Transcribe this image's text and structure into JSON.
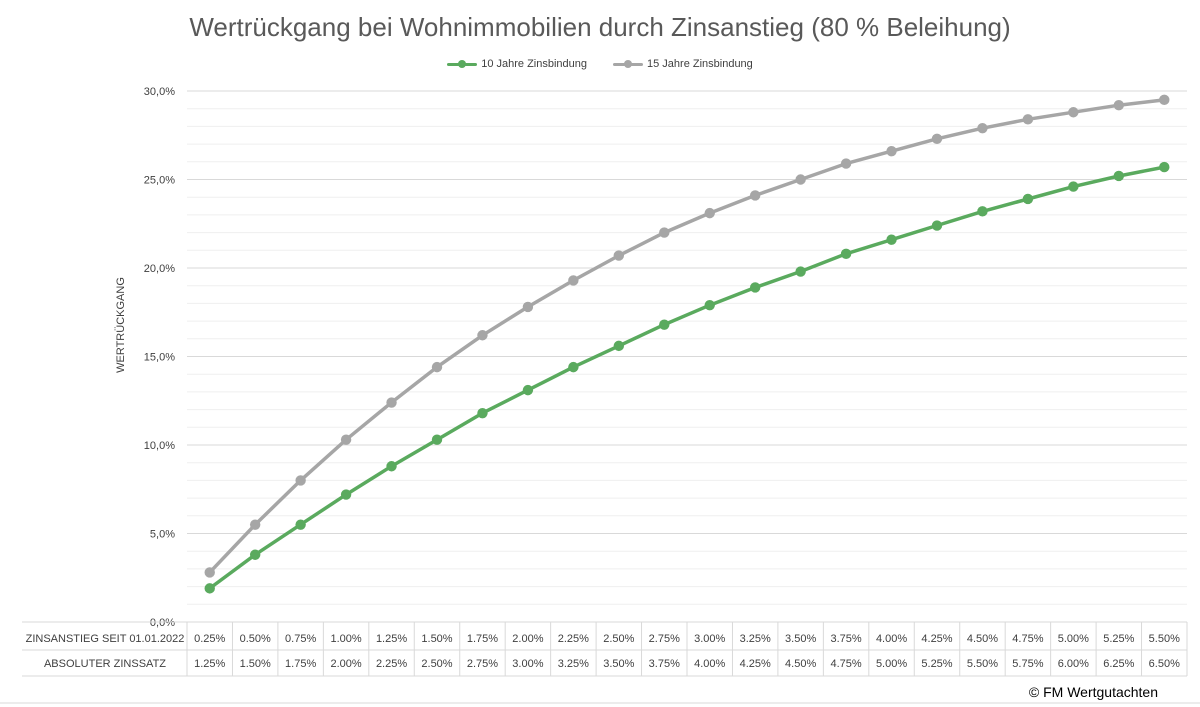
{
  "chart_data": {
    "type": "line",
    "title": "Wertrückgang bei Wohnimmobilien durch Zinsanstieg (80 % Beleihung)",
    "ylabel": "WERTRÜCKGANG",
    "ylim": [
      0,
      30
    ],
    "y_ticks": [
      "0,0%",
      "5,0%",
      "10,0%",
      "15,0%",
      "20,0%",
      "25,0%",
      "30,0%"
    ],
    "grid": true,
    "legend_position": "top",
    "table_rows": [
      {
        "label": "ZINSANSTIEG SEIT 01.01.2022",
        "values": [
          "0.25%",
          "0.50%",
          "0.75%",
          "1.00%",
          "1.25%",
          "1.50%",
          "1.75%",
          "2.00%",
          "2.25%",
          "2.50%",
          "2.75%",
          "3.00%",
          "3.25%",
          "3.50%",
          "3.75%",
          "4.00%",
          "4.25%",
          "4.50%",
          "4.75%",
          "5.00%",
          "5.25%",
          "5.50%"
        ]
      },
      {
        "label": "ABSOLUTER ZINSSATZ",
        "values": [
          "1.25%",
          "1.50%",
          "1.75%",
          "2.00%",
          "2.25%",
          "2.50%",
          "2.75%",
          "3.00%",
          "3.25%",
          "3.50%",
          "3.75%",
          "4.00%",
          "4.25%",
          "4.50%",
          "4.75%",
          "5.00%",
          "5.25%",
          "5.50%",
          "5.75%",
          "6.00%",
          "6.25%",
          "6.50%"
        ]
      }
    ],
    "series": [
      {
        "name": "10 Jahre Zinsbindung",
        "color": "#5aaa5e",
        "values": [
          1.9,
          3.8,
          5.5,
          7.2,
          8.8,
          10.3,
          11.8,
          13.1,
          14.4,
          15.6,
          16.8,
          17.9,
          18.9,
          19.8,
          20.8,
          21.6,
          22.4,
          23.2,
          23.9,
          24.6,
          25.2,
          25.7
        ]
      },
      {
        "name": "15 Jahre Zinsbindung",
        "color": "#a6a6a6",
        "values": [
          2.8,
          5.5,
          8.0,
          10.3,
          12.4,
          14.4,
          16.2,
          17.8,
          19.3,
          20.7,
          22.0,
          23.1,
          24.1,
          25.0,
          25.9,
          26.6,
          27.3,
          27.9,
          28.4,
          28.8,
          29.2,
          29.5
        ]
      }
    ]
  },
  "copyright": "© FM Wertgutachten"
}
